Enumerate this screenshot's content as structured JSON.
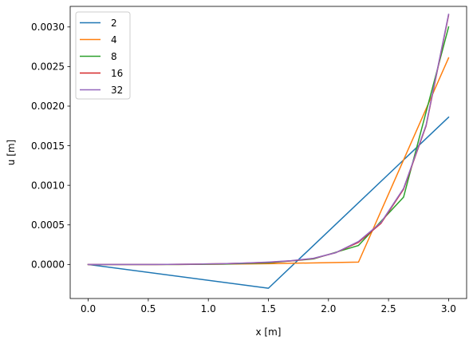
{
  "chart_data": {
    "type": "line",
    "title": "",
    "xlabel": "x [m]",
    "ylabel": "u [m]",
    "xlim": [
      -0.15,
      3.15
    ],
    "ylim": [
      -0.00043,
      0.00326
    ],
    "xticks": [
      0.0,
      0.5,
      1.0,
      1.5,
      2.0,
      2.5,
      3.0
    ],
    "xtick_labels": [
      "0.0",
      "0.5",
      "1.0",
      "1.5",
      "2.0",
      "2.5",
      "3.0"
    ],
    "yticks": [
      0.0,
      0.0005,
      0.001,
      0.0015,
      0.002,
      0.0025,
      0.003
    ],
    "ytick_labels": [
      "0.0000",
      "0.0005",
      "0.0010",
      "0.0015",
      "0.0020",
      "0.0025",
      "0.0030"
    ],
    "grid": false,
    "legend_position": "upper-left",
    "series": [
      {
        "name": "2",
        "color": "#1f77b4",
        "x": [
          0.0,
          1.5,
          3.0
        ],
        "y": [
          0.0,
          -0.0003,
          0.00186
        ]
      },
      {
        "name": "4",
        "color": "#ff7f0e",
        "x": [
          0.0,
          0.75,
          1.5,
          2.25,
          3.0
        ],
        "y": [
          0.0,
          0.0,
          1e-05,
          3e-05,
          0.00261
        ]
      },
      {
        "name": "8",
        "color": "#2ca02c",
        "x": [
          0.0,
          0.375,
          0.75,
          1.125,
          1.5,
          1.875,
          2.25,
          2.625,
          3.0
        ],
        "y": [
          0.0,
          0.0,
          0.0,
          5e-06,
          2e-05,
          7e-05,
          0.00024,
          0.00085,
          0.003
        ]
      },
      {
        "name": "16",
        "color": "#d62728",
        "x": [
          0.0,
          0.1875,
          0.375,
          0.5625,
          0.75,
          0.9375,
          1.125,
          1.3125,
          1.5,
          1.6875,
          1.875,
          2.0625,
          2.25,
          2.4375,
          2.625,
          2.8125,
          3.0
        ],
        "y": [
          0.0,
          0.0,
          0.0,
          0.0,
          2e-06,
          5e-06,
          1e-05,
          1.7e-05,
          2.8e-05,
          4.5e-05,
          7.5e-05,
          0.00015,
          0.00028,
          0.00052,
          0.00095,
          0.00175,
          0.00315
        ]
      },
      {
        "name": "32",
        "color": "#9467bd",
        "x": [
          0.0,
          0.1875,
          0.375,
          0.5625,
          0.75,
          0.9375,
          1.125,
          1.3125,
          1.5,
          1.6875,
          1.875,
          2.0625,
          2.25,
          2.4375,
          2.625,
          2.8125,
          3.0
        ],
        "y": [
          0.0,
          0.0,
          0.0,
          0.0,
          2e-06,
          5e-06,
          1e-05,
          1.8e-05,
          3e-05,
          4.8e-05,
          7.8e-05,
          0.00015,
          0.00029,
          0.00053,
          0.00096,
          0.00176,
          0.00316
        ]
      }
    ]
  }
}
